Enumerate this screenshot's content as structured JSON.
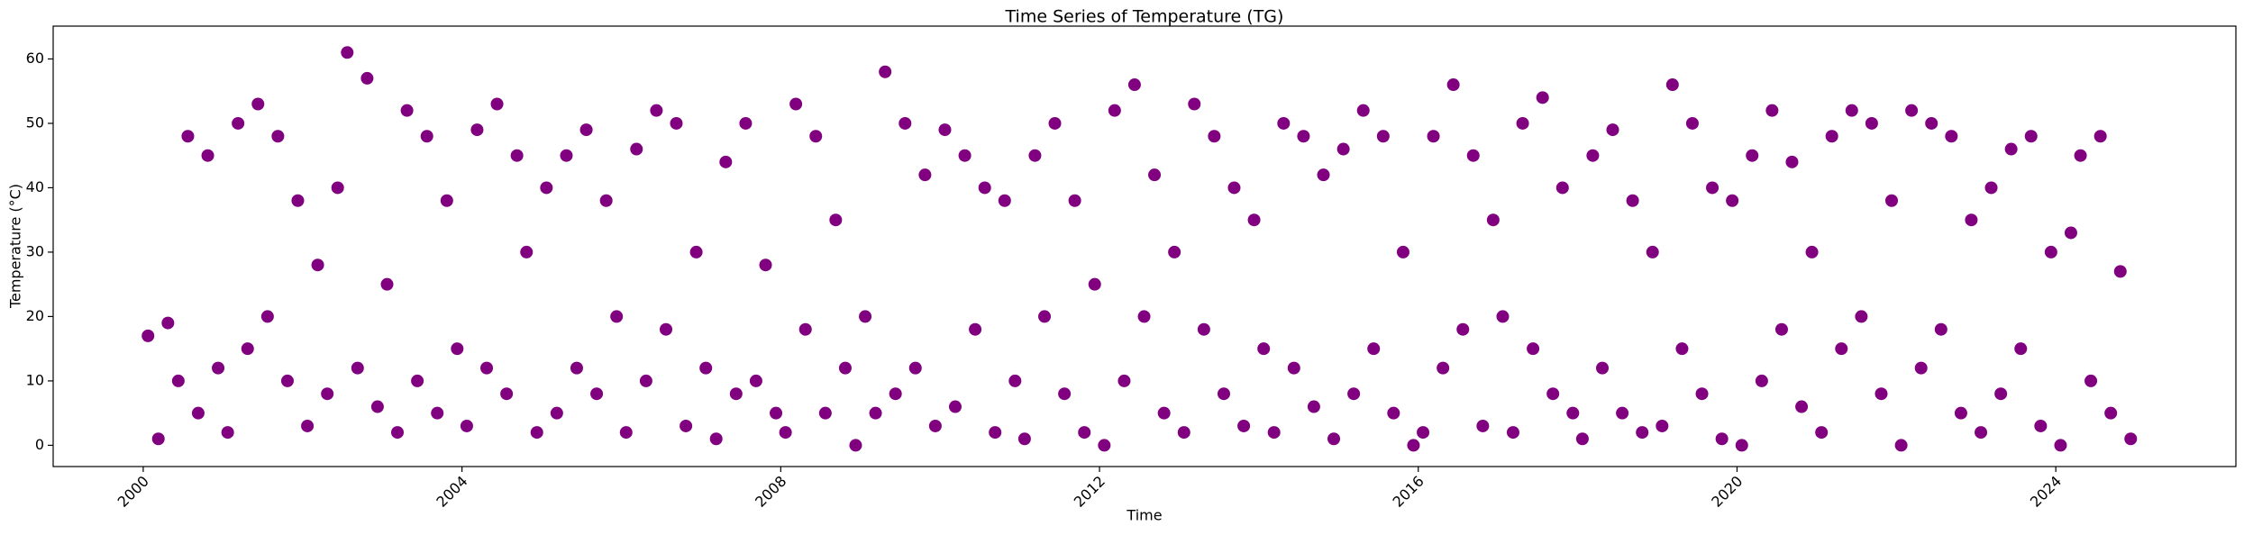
{
  "chart_data": {
    "type": "scatter",
    "title": "Time Series of Temperature (TG)",
    "x_label": "Time",
    "y_label": "Temperature (°C)",
    "color": "#800080",
    "x": [
      2000.06,
      2000.19,
      2000.31,
      2000.44,
      2000.56,
      2000.69,
      2000.81,
      2000.94,
      2001.06,
      2001.19,
      2001.31,
      2001.44,
      2001.56,
      2001.69,
      2001.81,
      2001.94,
      2002.06,
      2002.19,
      2002.31,
      2002.44,
      2002.56,
      2002.69,
      2002.81,
      2002.94,
      2003.06,
      2003.19,
      2003.31,
      2003.44,
      2003.56,
      2003.69,
      2003.81,
      2003.94,
      2004.06,
      2004.19,
      2004.31,
      2004.44,
      2004.56,
      2004.69,
      2004.81,
      2004.94,
      2005.06,
      2005.19,
      2005.31,
      2005.44,
      2005.56,
      2005.69,
      2005.81,
      2005.94,
      2006.06,
      2006.19,
      2006.31,
      2006.44,
      2006.56,
      2006.69,
      2006.81,
      2006.94,
      2007.06,
      2007.19,
      2007.31,
      2007.44,
      2007.56,
      2007.69,
      2007.81,
      2007.94,
      2008.06,
      2008.19,
      2008.31,
      2008.44,
      2008.56,
      2008.69,
      2008.81,
      2008.94,
      2009.06,
      2009.19,
      2009.31,
      2009.44,
      2009.56,
      2009.69,
      2009.81,
      2009.94,
      2010.06,
      2010.19,
      2010.31,
      2010.44,
      2010.56,
      2010.69,
      2010.81,
      2010.94,
      2011.06,
      2011.19,
      2011.31,
      2011.44,
      2011.56,
      2011.69,
      2011.81,
      2011.94,
      2012.06,
      2012.19,
      2012.31,
      2012.44,
      2012.56,
      2012.69,
      2012.81,
      2012.94,
      2013.06,
      2013.19,
      2013.31,
      2013.44,
      2013.56,
      2013.69,
      2013.81,
      2013.94,
      2014.06,
      2014.19,
      2014.31,
      2014.44,
      2014.56,
      2014.69,
      2014.81,
      2014.94,
      2015.06,
      2015.19,
      2015.31,
      2015.44,
      2015.56,
      2015.69,
      2015.81,
      2015.94,
      2016.06,
      2016.19,
      2016.31,
      2016.44,
      2016.56,
      2016.69,
      2016.81,
      2016.94,
      2017.06,
      2017.19,
      2017.31,
      2017.44,
      2017.56,
      2017.69,
      2017.81,
      2017.94,
      2018.06,
      2018.19,
      2018.31,
      2018.44,
      2018.56,
      2018.69,
      2018.81,
      2018.94,
      2019.06,
      2019.19,
      2019.31,
      2019.44,
      2019.56,
      2019.69,
      2019.81,
      2019.94,
      2020.06,
      2020.19,
      2020.31,
      2020.44,
      2020.56,
      2020.69,
      2020.81,
      2020.94,
      2021.06,
      2021.19,
      2021.31,
      2021.44,
      2021.56,
      2021.69,
      2021.81,
      2021.94,
      2022.06,
      2022.19,
      2022.31,
      2022.44,
      2022.56,
      2022.69,
      2022.81,
      2022.94,
      2023.06,
      2023.19,
      2023.31,
      2023.44,
      2023.56,
      2023.69,
      2023.81,
      2023.94,
      2024.06,
      2024.19,
      2024.31,
      2024.44,
      2024.56,
      2024.69,
      2024.81,
      2024.94
    ],
    "values": [
      17,
      1,
      19,
      10,
      48,
      5,
      45,
      12,
      2,
      50,
      15,
      53,
      20,
      48,
      10,
      38,
      3,
      28,
      8,
      40,
      61,
      12,
      57,
      6,
      25,
      2,
      52,
      10,
      48,
      5,
      38,
      15,
      3,
      49,
      12,
      53,
      8,
      45,
      30,
      2,
      40,
      5,
      45,
      12,
      49,
      8,
      38,
      20,
      2,
      46,
      10,
      52,
      18,
      50,
      3,
      30,
      12,
      1,
      44,
      8,
      50,
      10,
      28,
      5,
      2,
      53,
      18,
      48,
      5,
      35,
      12,
      0,
      20,
      5,
      58,
      8,
      50,
      12,
      42,
      3,
      49,
      6,
      45,
      18,
      40,
      2,
      38,
      10,
      1,
      45,
      20,
      50,
      8,
      38,
      2,
      25,
      0,
      52,
      10,
      56,
      20,
      42,
      5,
      30,
      2,
      53,
      18,
      48,
      8,
      40,
      3,
      35,
      15,
      2,
      50,
      12,
      48,
      6,
      42,
      1,
      46,
      8,
      52,
      15,
      48,
      5,
      30,
      0,
      2,
      48,
      12,
      56,
      18,
      45,
      3,
      35,
      20,
      2,
      50,
      15,
      54,
      8,
      40,
      5,
      1,
      45,
      12,
      49,
      5,
      38,
      2,
      30,
      3,
      56,
      15,
      50,
      8,
      40,
      1,
      38,
      0,
      45,
      10,
      52,
      18,
      44,
      6,
      30,
      2,
      48,
      15,
      52,
      20,
      50,
      8,
      38,
      0,
      52,
      12,
      50,
      18,
      48,
      5,
      35,
      2,
      40,
      8,
      46,
      15,
      48,
      3,
      30,
      0,
      33,
      45,
      10,
      48,
      5,
      27,
      1
    ],
    "xlim": [
      1998.87,
      2026.26
    ],
    "xticks": [
      2000,
      2004,
      2008,
      2012,
      2016,
      2020,
      2024
    ],
    "ylim": [
      -3.3,
      65.1
    ],
    "yticks": [
      0,
      10,
      20,
      30,
      40,
      50,
      60
    ]
  }
}
